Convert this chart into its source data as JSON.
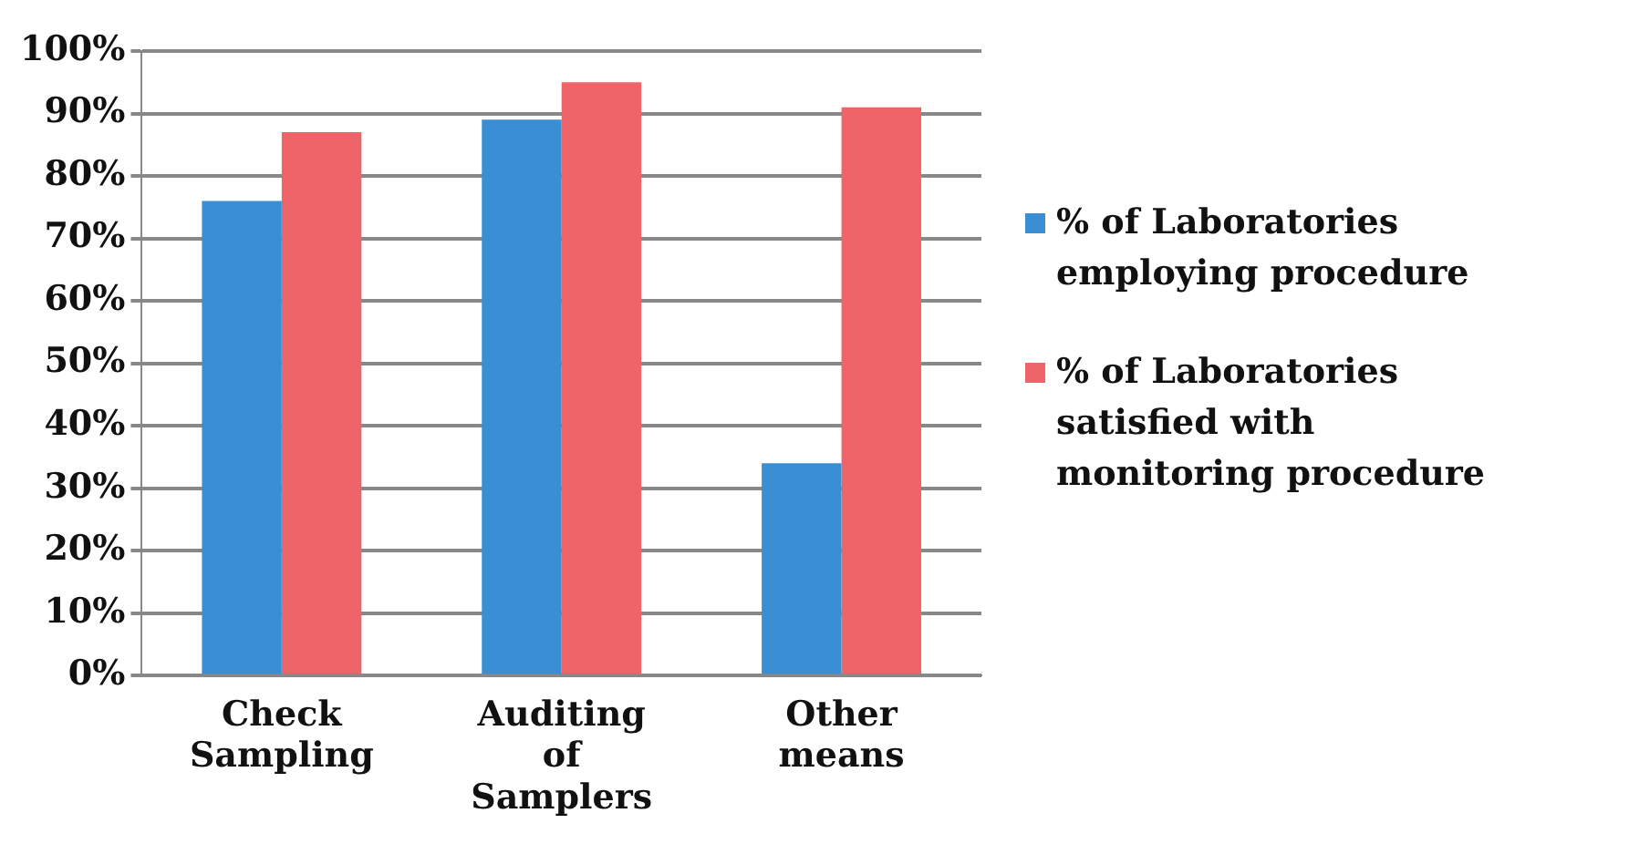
{
  "chart_data": {
    "type": "bar",
    "categories": [
      "Check Sampling",
      "Auditing of Samplers",
      "Other means"
    ],
    "series": [
      {
        "name": "% of Laboratories employing procedure",
        "color": "#3a8fd4",
        "values": [
          76,
          89,
          34
        ]
      },
      {
        "name": "% of Laboratories satisfied with monitoring procedure",
        "color": "#ef6468",
        "values": [
          87,
          95,
          91
        ]
      }
    ],
    "ylim": [
      0,
      100
    ],
    "yticks": [
      {
        "value": 0,
        "label": "0%"
      },
      {
        "value": 10,
        "label": "10%"
      },
      {
        "value": 20,
        "label": "20%"
      },
      {
        "value": 30,
        "label": "30%"
      },
      {
        "value": 40,
        "label": "40%"
      },
      {
        "value": 50,
        "label": "50%"
      },
      {
        "value": 60,
        "label": "60%"
      },
      {
        "value": 70,
        "label": "70%"
      },
      {
        "value": 80,
        "label": "80%"
      },
      {
        "value": 90,
        "label": "90%"
      },
      {
        "value": 100,
        "label": "100%"
      }
    ],
    "grid": "y",
    "legend": "right"
  }
}
